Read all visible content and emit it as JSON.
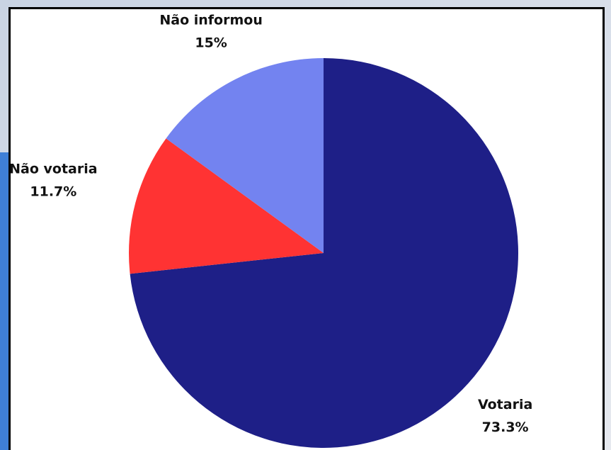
{
  "chart_data": {
    "type": "pie",
    "categories": [
      "Votaria",
      "Não votaria",
      "Não informou"
    ],
    "values": [
      73.3,
      11.7,
      15
    ],
    "value_labels": [
      "73.3%",
      "11.7%",
      "15%"
    ],
    "colors": [
      "#1e1f87",
      "#ff3333",
      "#7383f0"
    ]
  }
}
